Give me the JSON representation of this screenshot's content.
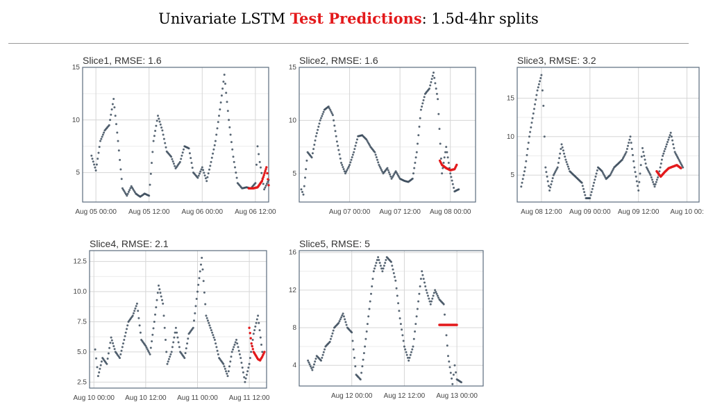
{
  "page": {
    "title_prefix": "Univariate LSTM ",
    "title_accent": "Test Predictions",
    "title_suffix": ": 1.5d-4hr splits"
  },
  "colors": {
    "actual": "#3b4b5c",
    "predicted": "#e31a1c",
    "grid": "#d6d6d6",
    "frame": "#5a6b7d"
  },
  "chart_data": [
    {
      "type": "scatter",
      "title": "Slice1, RMSE: 1.6",
      "ylim": [
        2.2,
        15
      ],
      "yticks": [
        "5",
        "10",
        "15"
      ],
      "xlim": [
        -3,
        39
      ],
      "xticks": [
        {
          "x": 0,
          "label": "Aug 05 00:00"
        },
        {
          "x": 12,
          "label": "Aug 05 12:00"
        },
        {
          "x": 24,
          "label": "Aug 06 00:00"
        },
        {
          "x": 36,
          "label": "Aug 06 12:00"
        }
      ],
      "x_end": 40,
      "actual": [
        [
          -1,
          6.6
        ],
        [
          0,
          5.2
        ],
        [
          1,
          8
        ],
        [
          2,
          9
        ],
        [
          3,
          9.5
        ],
        [
          4,
          12
        ],
        [
          5,
          8
        ],
        [
          6,
          3.5
        ],
        [
          7,
          2.8
        ],
        [
          8,
          3.7
        ],
        [
          9,
          3
        ],
        [
          10,
          2.7
        ],
        [
          11,
          3
        ],
        [
          12,
          2.8
        ],
        [
          13,
          8
        ],
        [
          14,
          10.4
        ],
        [
          15,
          9
        ],
        [
          16,
          7
        ],
        [
          17,
          6.5
        ],
        [
          18,
          5.4
        ],
        [
          19,
          6
        ],
        [
          20,
          7.5
        ],
        [
          21,
          7.3
        ],
        [
          22,
          5
        ],
        [
          23,
          4.5
        ],
        [
          24,
          5.5
        ],
        [
          25,
          4.2
        ],
        [
          26,
          6
        ],
        [
          27,
          8
        ],
        [
          28,
          11
        ],
        [
          29,
          14.3
        ],
        [
          30,
          10
        ],
        [
          31,
          6.5
        ],
        [
          32,
          4
        ],
        [
          33,
          3.5
        ],
        [
          34,
          3.6
        ],
        [
          35,
          3.5
        ],
        [
          36,
          4
        ],
        [
          36.5,
          7.5
        ],
        [
          37,
          6
        ],
        [
          38,
          3.4
        ],
        [
          39,
          4.3
        ]
      ],
      "predicted": [
        [
          34.5,
          3.5
        ],
        [
          35.5,
          3.5
        ],
        [
          36.5,
          3.6
        ],
        [
          37.5,
          4.2
        ],
        [
          38.5,
          5.5
        ],
        [
          39,
          3.8
        ]
      ]
    },
    {
      "type": "scatter",
      "title": "Slice2, RMSE: 1.6",
      "ylim": [
        2.3,
        15
      ],
      "yticks": [
        "5",
        "10",
        "15"
      ],
      "xlim": [
        0,
        42
      ],
      "xticks": [
        {
          "x": 12,
          "label": "Aug 07 00:00"
        },
        {
          "x": 24,
          "label": "Aug 07 12:00"
        },
        {
          "x": 36,
          "label": "Aug 08 00:00"
        }
      ],
      "x_end": 42,
      "actual": [
        [
          0.5,
          3.5
        ],
        [
          1,
          3
        ],
        [
          2,
          7
        ],
        [
          3,
          6.5
        ],
        [
          4,
          8.5
        ],
        [
          5,
          10
        ],
        [
          6,
          11
        ],
        [
          7,
          11.3
        ],
        [
          8,
          10.5
        ],
        [
          9,
          8
        ],
        [
          10,
          6
        ],
        [
          11,
          5
        ],
        [
          12,
          5.8
        ],
        [
          13,
          7
        ],
        [
          14,
          8.5
        ],
        [
          15,
          8.6
        ],
        [
          16,
          8.2
        ],
        [
          17,
          7.5
        ],
        [
          18,
          7
        ],
        [
          19,
          5.8
        ],
        [
          20,
          5
        ],
        [
          21,
          5.5
        ],
        [
          22,
          4.5
        ],
        [
          23,
          5.2
        ],
        [
          24,
          4.5
        ],
        [
          25,
          4.3
        ],
        [
          26,
          4.2
        ],
        [
          27,
          4.5
        ],
        [
          28,
          7
        ],
        [
          29,
          11
        ],
        [
          30,
          12.5
        ],
        [
          31,
          13
        ],
        [
          32,
          14.5
        ],
        [
          33,
          12
        ],
        [
          34,
          5
        ],
        [
          35,
          7.5
        ],
        [
          36,
          5
        ],
        [
          37,
          3.3
        ],
        [
          38,
          3.5
        ]
      ],
      "predicted": [
        [
          33.5,
          6.2
        ],
        [
          34,
          5.8
        ],
        [
          35,
          5.5
        ],
        [
          36,
          5.3
        ],
        [
          37,
          5.4
        ],
        [
          37.5,
          5.8
        ]
      ]
    },
    {
      "type": "scatter",
      "title": "Slice3, RMSE: 3.2",
      "ylim": [
        1.5,
        19
      ],
      "yticks": [
        "5",
        "10",
        "15"
      ],
      "xlim": [
        -6,
        39
      ],
      "xticks": [
        {
          "x": 0,
          "label": "Aug 08 12:00"
        },
        {
          "x": 12,
          "label": "Aug 09 00:00"
        },
        {
          "x": 24,
          "label": "Aug 09 12:00"
        },
        {
          "x": 36,
          "label": "Aug 10 00:"
        }
      ],
      "x_end": 39,
      "actual": [
        [
          -5,
          3.5
        ],
        [
          -4,
          6
        ],
        [
          -3,
          10
        ],
        [
          -2,
          13
        ],
        [
          -1,
          16
        ],
        [
          0,
          18
        ],
        [
          0.5,
          14
        ],
        [
          1,
          6
        ],
        [
          2,
          3
        ],
        [
          3,
          5
        ],
        [
          4,
          6
        ],
        [
          5,
          9
        ],
        [
          6,
          7
        ],
        [
          7,
          5.5
        ],
        [
          8,
          5
        ],
        [
          9,
          4.5
        ],
        [
          10,
          4
        ],
        [
          11,
          2
        ],
        [
          12,
          2
        ],
        [
          13,
          4
        ],
        [
          14,
          6
        ],
        [
          15,
          5.5
        ],
        [
          16,
          4.5
        ],
        [
          17,
          5
        ],
        [
          18,
          6
        ],
        [
          19,
          6.5
        ],
        [
          20,
          7
        ],
        [
          21,
          8
        ],
        [
          22,
          10
        ],
        [
          23,
          6
        ],
        [
          24,
          3
        ],
        [
          25,
          8.5
        ],
        [
          26,
          6
        ],
        [
          27,
          5
        ],
        [
          28,
          3.5
        ],
        [
          29,
          5
        ],
        [
          30,
          7.5
        ],
        [
          31,
          9
        ],
        [
          32,
          10.5
        ],
        [
          33,
          8
        ],
        [
          34,
          7
        ],
        [
          35,
          6
        ]
      ],
      "predicted": [
        [
          28.5,
          5.5
        ],
        [
          29.5,
          4.8
        ],
        [
          30.5,
          5.4
        ],
        [
          31.5,
          5.9
        ],
        [
          32.5,
          6.1
        ],
        [
          33.5,
          6.3
        ],
        [
          34.5,
          5.9
        ]
      ]
    },
    {
      "type": "scatter",
      "title": "Slice4, RMSE: 2.1",
      "ylim": [
        2,
        13.4
      ],
      "yticks": [
        "2.5",
        "5.0",
        "7.5",
        "10.0",
        "12.5"
      ],
      "xlim": [
        -1,
        40
      ],
      "xticks": [
        {
          "x": 0,
          "label": "Aug 10 00:00"
        },
        {
          "x": 12,
          "label": "Aug 10 12:00"
        },
        {
          "x": 24,
          "label": "Aug 11 00:00"
        },
        {
          "x": 36,
          "label": "Aug 11 12:00"
        }
      ],
      "x_end": 40,
      "actual": [
        [
          0.3,
          5.2
        ],
        [
          1,
          3
        ],
        [
          2,
          4.5
        ],
        [
          3,
          4
        ],
        [
          4,
          6.2
        ],
        [
          5,
          5
        ],
        [
          6,
          4.5
        ],
        [
          7,
          6
        ],
        [
          8,
          7.5
        ],
        [
          9,
          8
        ],
        [
          10,
          9
        ],
        [
          11,
          6
        ],
        [
          12,
          5.5
        ],
        [
          13,
          4.8
        ],
        [
          14,
          7.5
        ],
        [
          15,
          10.5
        ],
        [
          16,
          9
        ],
        [
          17,
          4
        ],
        [
          18,
          5
        ],
        [
          19,
          7
        ],
        [
          20,
          5
        ],
        [
          21,
          4.5
        ],
        [
          22,
          6.5
        ],
        [
          23,
          7
        ],
        [
          24,
          10
        ],
        [
          25,
          12.8
        ],
        [
          26,
          8
        ],
        [
          27,
          7
        ],
        [
          28,
          6
        ],
        [
          29,
          4.5
        ],
        [
          30,
          4
        ],
        [
          31,
          3
        ],
        [
          32,
          5
        ],
        [
          33,
          6
        ],
        [
          34,
          4.5
        ],
        [
          35,
          2.5
        ],
        [
          36,
          4
        ],
        [
          37,
          6.5
        ],
        [
          38,
          8
        ],
        [
          39,
          5
        ]
      ],
      "predicted": [
        [
          36,
          7
        ],
        [
          36.5,
          5.7
        ],
        [
          37,
          5
        ],
        [
          37.5,
          4.7
        ],
        [
          38,
          4.4
        ],
        [
          38.5,
          4.3
        ],
        [
          39,
          4.6
        ],
        [
          39.5,
          5
        ]
      ]
    },
    {
      "type": "scatter",
      "title": "Slice5, RMSE: 5",
      "ylim": [
        1.8,
        16.2
      ],
      "yticks": [
        "4",
        "8",
        "12",
        "16"
      ],
      "xlim": [
        0,
        42
      ],
      "xticks": [
        {
          "x": 12,
          "label": "Aug 12 00:00"
        },
        {
          "x": 24,
          "label": "Aug 12 12:00"
        },
        {
          "x": 36,
          "label": "Aug 13 00:00"
        }
      ],
      "x_end": 42,
      "actual": [
        [
          2,
          4.5
        ],
        [
          3,
          3.5
        ],
        [
          4,
          5
        ],
        [
          5,
          4.5
        ],
        [
          6,
          6
        ],
        [
          7,
          6.5
        ],
        [
          8,
          8
        ],
        [
          9,
          8.5
        ],
        [
          10,
          9.5
        ],
        [
          11,
          8
        ],
        [
          12,
          7.5
        ],
        [
          13,
          3
        ],
        [
          14,
          2.5
        ],
        [
          15,
          6
        ],
        [
          16,
          10
        ],
        [
          17,
          14
        ],
        [
          18,
          15.5
        ],
        [
          19,
          14
        ],
        [
          20,
          15.5
        ],
        [
          21,
          15
        ],
        [
          22,
          13
        ],
        [
          23,
          9
        ],
        [
          24,
          6
        ],
        [
          25,
          4.5
        ],
        [
          26,
          6
        ],
        [
          27,
          10
        ],
        [
          28,
          14
        ],
        [
          29,
          12
        ],
        [
          30,
          10.5
        ],
        [
          31,
          12
        ],
        [
          32,
          11
        ],
        [
          33,
          10.5
        ],
        [
          34,
          5
        ],
        [
          35,
          2
        ],
        [
          35.5,
          4
        ],
        [
          36,
          2.5
        ],
        [
          37,
          2.2
        ]
      ],
      "predicted": [
        [
          32,
          8.3
        ],
        [
          33,
          8.3
        ],
        [
          34,
          8.3
        ],
        [
          35,
          8.3
        ],
        [
          36,
          8.3
        ]
      ]
    }
  ]
}
